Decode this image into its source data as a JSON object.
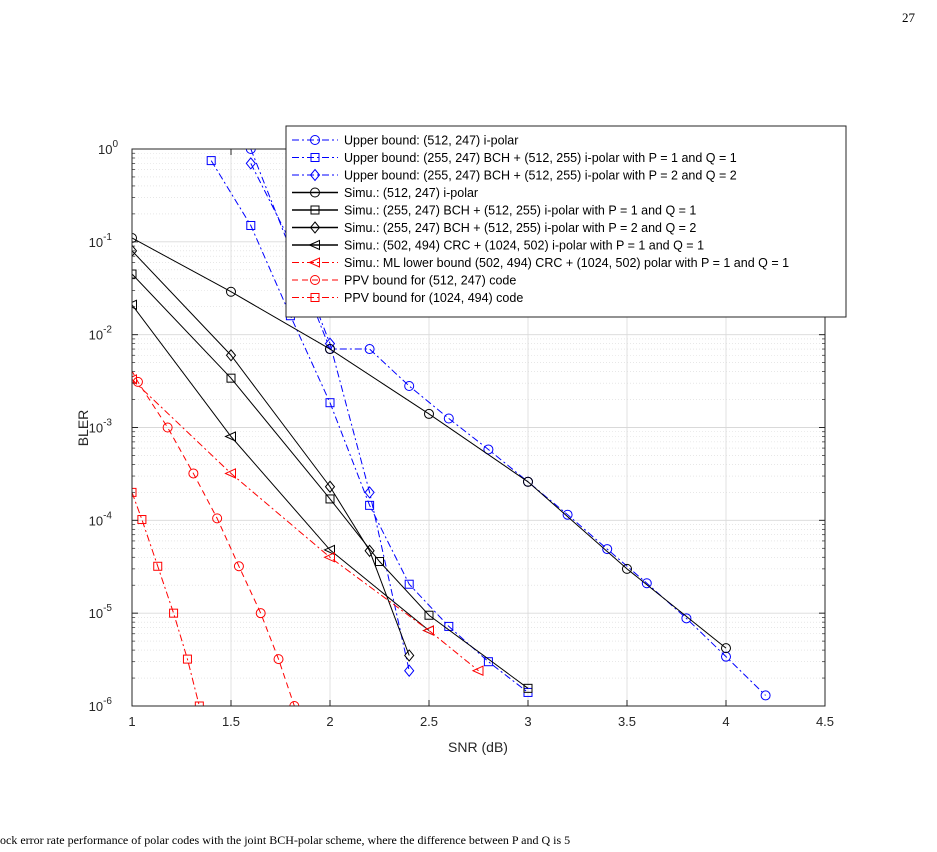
{
  "page": {
    "page_number": "27",
    "caption_fragment": "ock error rate performance of polar codes with the joint BCH-polar scheme, where the difference between P and Q is 5"
  },
  "colors": {
    "blue": "#0000ff",
    "black": "#000000",
    "red": "#ff0000",
    "grid": "#d9d9d9",
    "axis": "#262626"
  },
  "chart_data": {
    "type": "line",
    "title": "",
    "xlabel": "SNR (dB)",
    "ylabel": "BLER",
    "xlim": [
      1,
      4.5
    ],
    "ylim": [
      1e-06,
      1
    ],
    "yscale": "log",
    "grid": true,
    "legend_position": "top-right",
    "xticks": [
      1,
      1.5,
      2,
      2.5,
      3,
      3.5,
      4,
      4.5
    ],
    "xtick_labels": [
      "1",
      "1.5",
      "2",
      "2.5",
      "3",
      "3.5",
      "4",
      "4.5"
    ],
    "ytick_labels": [
      {
        "base": "10",
        "exp": "0"
      },
      {
        "base": "10",
        "exp": "-1"
      },
      {
        "base": "10",
        "exp": "-2"
      },
      {
        "base": "10",
        "exp": "-3"
      },
      {
        "base": "10",
        "exp": "-4"
      },
      {
        "base": "10",
        "exp": "-5"
      },
      {
        "base": "10",
        "exp": "-6"
      }
    ],
    "series": [
      {
        "name": "Upper bound: (512, 247) i-polar",
        "color": "#0000ff",
        "dash": "dashdot",
        "marker": "circle",
        "x": [
          1.6,
          2.0,
          2.2,
          2.4,
          2.6,
          2.8,
          3.0,
          3.2,
          3.4,
          3.6,
          3.8,
          4.0,
          4.2
        ],
        "y": [
          1.0,
          0.007,
          0.007,
          0.0028,
          0.00125,
          0.00058,
          0.00026,
          0.000115,
          4.9e-05,
          2.1e-05,
          8.8e-06,
          3.4e-06,
          1.3e-06
        ]
      },
      {
        "name": "Upper bound: (255, 247) BCH + (512, 255) i-polar with P = 1 and Q = 1",
        "color": "#0000ff",
        "dash": "dashdot",
        "marker": "square",
        "x": [
          1.4,
          1.6,
          1.8,
          2.0,
          2.2,
          2.4,
          2.6,
          2.8,
          3.0
        ],
        "y": [
          0.75,
          0.15,
          0.016,
          0.00185,
          0.000145,
          2.05e-05,
          7.2e-06,
          3e-06,
          1.4e-06
        ]
      },
      {
        "name": "Upper bound: (255, 247) BCH + (512, 255) i-polar with P = 2 and Q = 2",
        "color": "#0000ff",
        "dash": "dashdot",
        "marker": "diamond",
        "x": [
          1.6,
          1.8,
          2.0,
          2.2,
          2.4
        ],
        "y": [
          0.7,
          0.1,
          0.008,
          0.0002,
          2.4e-06
        ]
      },
      {
        "name": "Simu.: (512, 247) i-polar",
        "color": "#000000",
        "dash": "solid",
        "marker": "circle",
        "x": [
          1.0,
          1.5,
          2.0,
          2.5,
          3.0,
          3.5,
          4.0
        ],
        "y": [
          0.11,
          0.029,
          0.007,
          0.0014,
          0.00026,
          3e-05,
          4.2e-06
        ]
      },
      {
        "name": "Simu.: (255, 247) BCH + (512, 255) i-polar with P = 1 and Q = 1",
        "color": "#000000",
        "dash": "solid",
        "marker": "square",
        "x": [
          1.0,
          1.5,
          2.0,
          2.25,
          2.5,
          3.0
        ],
        "y": [
          0.045,
          0.0034,
          0.00017,
          3.6e-05,
          9.5e-06,
          1.55e-06
        ]
      },
      {
        "name": "Simu.: (255, 247) BCH + (512, 255) i-polar with P = 2 and Q = 2",
        "color": "#000000",
        "dash": "solid",
        "marker": "diamond",
        "x": [
          1.0,
          1.5,
          2.0,
          2.2,
          2.4
        ],
        "y": [
          0.08,
          0.006,
          0.00023,
          4.7e-05,
          3.5e-06
        ]
      },
      {
        "name": "Simu.: (502, 494) CRC + (1024, 502) i-polar with P = 1 and Q = 1",
        "color": "#000000",
        "dash": "solid",
        "marker": "triangle-left",
        "x": [
          1.0,
          1.5,
          2.0,
          2.5
        ],
        "y": [
          0.021,
          0.0008,
          4.8e-05,
          6.5e-06
        ]
      },
      {
        "name": "Simu.: ML lower bound (502, 494) CRC + (1024, 502) polar with P = 1 and Q = 1",
        "color": "#ff0000",
        "dash": "dashdot",
        "marker": "triangle-left",
        "x": [
          1.0,
          1.5,
          2.0,
          2.5,
          2.75
        ],
        "y": [
          0.0033,
          0.00032,
          4e-05,
          6.5e-06,
          2.4e-06
        ]
      },
      {
        "name": "PPV bound for (512, 247) code",
        "color": "#ff0000",
        "dash": "dashed",
        "marker": "circle",
        "x": [
          0.9,
          1.03,
          1.18,
          1.31,
          1.43,
          1.54,
          1.65,
          1.74,
          1.82
        ],
        "y": [
          0.01,
          0.0031,
          0.001,
          0.00032,
          0.000105,
          3.2e-05,
          1e-05,
          3.2e-06,
          1e-06
        ]
      },
      {
        "name": "PPV bound for (1024, 494) code",
        "color": "#ff0000",
        "dash": "dashdot",
        "marker": "square",
        "x": [
          1.0,
          1.05,
          1.13,
          1.21,
          1.28,
          1.34
        ],
        "y": [
          0.0002,
          0.000102,
          3.2e-05,
          1e-05,
          3.2e-06,
          1e-06
        ]
      }
    ]
  }
}
